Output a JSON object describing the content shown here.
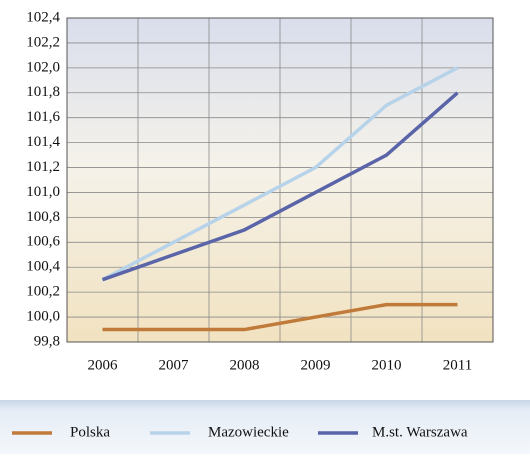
{
  "chart_data": {
    "type": "line",
    "categories": [
      "2006",
      "2007",
      "2008",
      "2009",
      "2010",
      "2011"
    ],
    "series": [
      {
        "name": "Polska",
        "color": "#c07a3a",
        "values": [
          99.9,
          99.9,
          99.9,
          100.0,
          100.1,
          100.1
        ]
      },
      {
        "name": "Mazowieckie",
        "color": "#b7d3ea",
        "values": [
          100.3,
          100.6,
          100.9,
          101.2,
          101.7,
          102.0
        ]
      },
      {
        "name": "M.st. Warszawa",
        "color": "#5a64a8",
        "values": [
          100.3,
          100.5,
          100.7,
          101.0,
          101.3,
          101.8
        ]
      }
    ],
    "ylim": [
      99.8,
      102.4
    ],
    "yticks": [
      {
        "value": 99.8,
        "label": "99,8"
      },
      {
        "value": 100.0,
        "label": "100,0"
      },
      {
        "value": 100.2,
        "label": "100,2"
      },
      {
        "value": 100.4,
        "label": "100,4"
      },
      {
        "value": 100.6,
        "label": "100,6"
      },
      {
        "value": 100.8,
        "label": "100,8"
      },
      {
        "value": 101.0,
        "label": "101,0"
      },
      {
        "value": 101.2,
        "label": "101,2"
      },
      {
        "value": 101.4,
        "label": "101,4"
      },
      {
        "value": 101.6,
        "label": "101,6"
      },
      {
        "value": 101.8,
        "label": "101,8"
      },
      {
        "value": 102.0,
        "label": "102,0"
      },
      {
        "value": 102.2,
        "label": "102,2"
      },
      {
        "value": 102.4,
        "label": "102,4"
      }
    ],
    "grid": true,
    "legend": "bottom"
  }
}
